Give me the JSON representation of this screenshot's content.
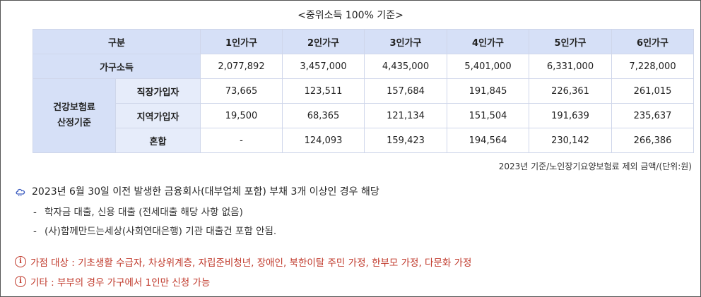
{
  "caption": "<중위소득 100% 기준>",
  "table": {
    "header": [
      "구분",
      "1인가구",
      "2인가구",
      "3인가구",
      "4인가구",
      "5인가구",
      "6인가구"
    ],
    "income_row": {
      "label": "가구소득",
      "values": [
        "2,077,892",
        "3,457,000",
        "4,435,000",
        "5,401,000",
        "6,331,000",
        "7,228,000"
      ]
    },
    "group_label_line1": "건강보험료",
    "group_label_line2": "산정기준",
    "rows": [
      {
        "label": "직장가입자",
        "values": [
          "73,665",
          "123,511",
          "157,684",
          "191,845",
          "226,361",
          "261,015"
        ]
      },
      {
        "label": "지역가입자",
        "values": [
          "19,500",
          "68,365",
          "121,134",
          "151,504",
          "191,639",
          "235,637"
        ]
      },
      {
        "label": "혼합",
        "values": [
          "-",
          "124,093",
          "159,423",
          "194,564",
          "230,142",
          "266,386"
        ]
      }
    ]
  },
  "unit_note": "2023년 기준/노인장기요양보험료 제외 금액/(단위:원)",
  "note": {
    "icon": "cloud-icon",
    "text": "2023년 6월 30일 이전 발생한 금융회사(대부업체 포함) 부채 3개 이상인 경우 해당",
    "bullets": [
      "학자금 대출, 신용 대출 (전세대출 해당 사항 없음)",
      "(사)함께만드는세상(사회연대은행) 기관 대출건 포함 안됨."
    ]
  },
  "info_lines": [
    {
      "icon": "info-icon",
      "text": "가점 대상 : 기초생활 수급자, 차상위계층, 자립준비청년, 장애인, 북한이탈 주민 가정, 한부모 가정, 다문화 가정"
    },
    {
      "icon": "info-icon",
      "text": "기타 : 부부의 경우 가구에서 1인만 신청 가능"
    }
  ],
  "colors": {
    "header_bg": "#d6e0f7",
    "sub_bg": "#e6ecfa",
    "accent_red": "#c0392b"
  }
}
